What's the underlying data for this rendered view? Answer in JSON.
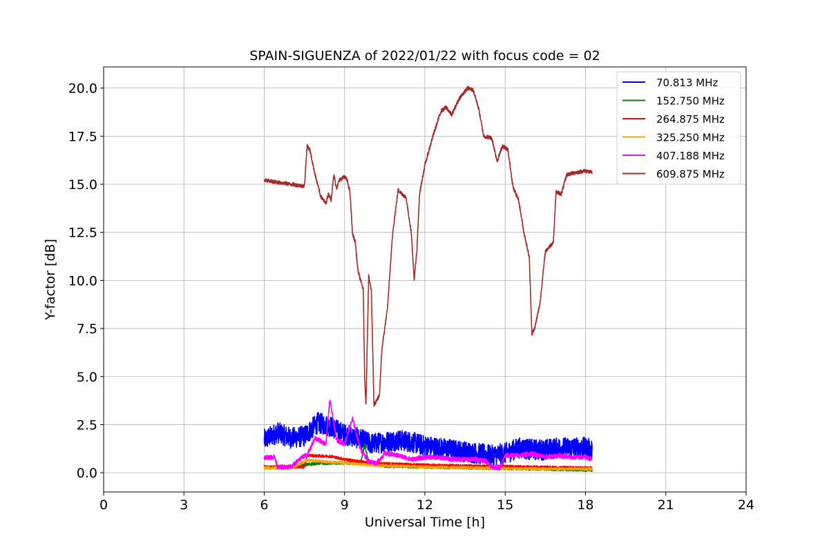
{
  "chart_data": {
    "type": "line",
    "title": "SPAIN-SIGUENZA of 2022/01/22 with focus code = 02",
    "xlabel": "Universal Time [h]",
    "ylabel": "Y-factor [dB]",
    "xlim": [
      0,
      24
    ],
    "ylim": [
      -1.0,
      21.1
    ],
    "xticks": [
      0,
      3,
      6,
      9,
      12,
      15,
      18,
      21,
      24
    ],
    "xtick_labels": [
      "0",
      "3",
      "6",
      "9",
      "12",
      "15",
      "18",
      "21",
      "24"
    ],
    "yticks": [
      0.0,
      2.5,
      5.0,
      7.5,
      10.0,
      12.5,
      15.0,
      17.5,
      20.0
    ],
    "ytick_labels": [
      "0.0",
      "2.5",
      "5.0",
      "7.5",
      "10.0",
      "12.5",
      "15.0",
      "17.5",
      "20.0"
    ],
    "grid": true,
    "legend_position": "top-right",
    "series": [
      {
        "name": " 70.813 MHz",
        "color": "#0000ff",
        "noise": 0.55,
        "x": [
          6.0,
          6.5,
          7.0,
          7.5,
          8.0,
          8.5,
          9.0,
          9.5,
          10.0,
          10.5,
          11.0,
          11.5,
          12.0,
          12.5,
          13.0,
          13.5,
          14.0,
          14.5,
          15.0,
          15.5,
          16.0,
          16.5,
          17.0,
          17.5,
          18.0,
          18.25
        ],
        "y": [
          1.7,
          2.1,
          1.8,
          1.9,
          2.6,
          2.4,
          2.0,
          1.8,
          1.5,
          1.6,
          1.7,
          1.6,
          1.4,
          1.3,
          1.2,
          1.1,
          1.0,
          0.9,
          1.0,
          1.3,
          1.2,
          1.2,
          1.3,
          1.3,
          1.3,
          1.2
        ]
      },
      {
        "name": "152.750 MHz",
        "color": "#008000",
        "noise": 0.08,
        "x": [
          6.0,
          7.0,
          8.0,
          9.0,
          9.6,
          9.75,
          9.9,
          10.5,
          12.0,
          14.0,
          16.0,
          18.0,
          18.25
        ],
        "y": [
          0.3,
          0.3,
          0.5,
          0.5,
          0.5,
          1.5,
          0.5,
          0.35,
          0.3,
          0.25,
          0.2,
          0.15,
          0.15
        ]
      },
      {
        "name": "264.875 MHz",
        "color": "#ff0000",
        "noise": 0.07,
        "x": [
          6.0,
          7.5,
          7.6,
          8.5,
          9.0,
          9.5,
          10.0,
          11.0,
          12.0,
          14.0,
          16.0,
          18.0,
          18.25
        ],
        "y": [
          0.3,
          0.3,
          0.9,
          0.85,
          0.7,
          0.6,
          0.5,
          0.45,
          0.4,
          0.35,
          0.3,
          0.25,
          0.25
        ]
      },
      {
        "name": "325.250 MHz",
        "color": "#ffa500",
        "noise": 0.07,
        "x": [
          6.0,
          7.0,
          7.6,
          8.5,
          9.0,
          10.0,
          11.0,
          12.0,
          14.0,
          16.0,
          18.0,
          18.25
        ],
        "y": [
          0.25,
          0.25,
          0.65,
          0.55,
          0.5,
          0.4,
          0.35,
          0.3,
          0.25,
          0.2,
          0.2,
          0.2
        ]
      },
      {
        "name": "407.188 MHz",
        "color": "#ff00ff",
        "noise": 0.12,
        "x": [
          6.0,
          6.4,
          6.5,
          7.0,
          7.5,
          7.6,
          7.9,
          8.3,
          8.45,
          8.7,
          9.0,
          9.3,
          9.6,
          9.9,
          10.2,
          10.5,
          11.0,
          11.5,
          12.0,
          12.5,
          13.0,
          13.5,
          14.0,
          14.3,
          14.5,
          14.8,
          15.0,
          15.5,
          16.0,
          16.5,
          17.0,
          17.5,
          18.0,
          18.25
        ],
        "y": [
          0.8,
          0.8,
          0.3,
          0.3,
          0.9,
          0.9,
          1.8,
          1.5,
          3.8,
          1.7,
          1.5,
          2.8,
          1.2,
          0.6,
          0.5,
          1.0,
          0.9,
          0.7,
          0.8,
          0.8,
          0.7,
          0.7,
          0.7,
          0.6,
          0.3,
          0.25,
          0.9,
          0.9,
          1.0,
          0.8,
          0.9,
          0.8,
          0.8,
          0.7
        ]
      },
      {
        "name": "609.875 MHz",
        "color": "#a52a2a",
        "noise": 0.1,
        "x": [
          6.0,
          6.5,
          7.0,
          7.5,
          7.6,
          7.7,
          7.9,
          8.1,
          8.3,
          8.4,
          8.5,
          8.6,
          8.7,
          8.8,
          9.0,
          9.1,
          9.2,
          9.3,
          9.4,
          9.5,
          9.7,
          9.75,
          9.8,
          9.9,
          10.0,
          10.1,
          10.3,
          10.4,
          10.6,
          10.8,
          11.0,
          11.3,
          11.5,
          11.6,
          11.7,
          11.8,
          12.0,
          12.3,
          12.6,
          12.8,
          13.0,
          13.3,
          13.6,
          13.8,
          14.0,
          14.2,
          14.5,
          14.7,
          14.9,
          15.1,
          15.3,
          15.5,
          15.7,
          15.9,
          16.0,
          16.1,
          16.3,
          16.5,
          16.8,
          16.9,
          17.1,
          17.3,
          17.6,
          18.0,
          18.25
        ],
        "y": [
          15.2,
          15.1,
          15.0,
          14.9,
          17.0,
          16.8,
          15.5,
          14.4,
          14.0,
          14.5,
          14.2,
          15.5,
          14.8,
          15.2,
          15.4,
          15.2,
          14.6,
          12.4,
          12.0,
          10.5,
          9.5,
          5.0,
          3.5,
          10.2,
          9.5,
          3.5,
          4.0,
          6.5,
          8.5,
          12.5,
          14.7,
          14.3,
          12.4,
          10.0,
          11.5,
          14.5,
          16.0,
          17.5,
          18.8,
          19.0,
          18.6,
          19.5,
          20.0,
          19.9,
          19.0,
          17.5,
          17.4,
          16.2,
          17.0,
          16.8,
          14.8,
          14.2,
          12.5,
          11.2,
          7.2,
          7.5,
          8.8,
          11.5,
          12.0,
          14.6,
          14.5,
          15.5,
          15.6,
          15.7,
          15.6
        ]
      }
    ]
  }
}
